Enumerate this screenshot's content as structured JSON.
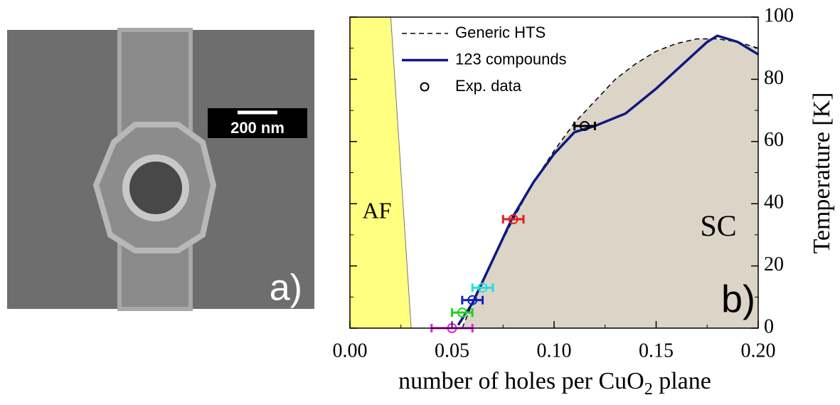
{
  "panel_a": {
    "scale_bar": "200 nm",
    "label": "a)"
  },
  "chart_data": {
    "type": "line",
    "x_label": {
      "pre": "number of holes per CuO",
      "sub": "2",
      "post": " plane"
    },
    "y_label": "Temperature [K]",
    "panel_label": "b)",
    "regions": {
      "af": {
        "label": "AF",
        "color": "#ffff80",
        "x": [
          0.03,
          0.02
        ],
        "y": [
          0,
          100
        ]
      },
      "sc": {
        "label": "SC",
        "color": "#ddd4c8"
      }
    },
    "xlim": [
      0,
      0.2
    ],
    "ylim": [
      0,
      100
    ],
    "xticks": [
      {
        "value": 0,
        "label": "0.00"
      },
      {
        "value": 0.05,
        "label": "0.05"
      },
      {
        "value": 0.1,
        "label": "0.10"
      },
      {
        "value": 0.15,
        "label": "0.15"
      },
      {
        "value": 0.2,
        "label": "0.20"
      }
    ],
    "yticks": [
      0,
      20,
      40,
      60,
      80,
      100
    ],
    "legend": "upper left",
    "series": [
      {
        "name": "Generic HTS",
        "color": "#000000",
        "dash": true,
        "x": [
          0.055,
          0.06,
          0.07,
          0.08,
          0.09,
          0.1,
          0.11,
          0.12,
          0.13,
          0.14,
          0.15,
          0.16,
          0.17,
          0.18,
          0.19,
          0.2
        ],
        "values": [
          0,
          8,
          22,
          35,
          47,
          57,
          66,
          73,
          80,
          85,
          89,
          91.5,
          93,
          93,
          92,
          90
        ]
      },
      {
        "name": "123 compounds",
        "color": "#0d1a80",
        "dash": false,
        "x": [
          0.053,
          0.06,
          0.07,
          0.08,
          0.09,
          0.1,
          0.11,
          0.12,
          0.135,
          0.15,
          0.165,
          0.175,
          0.18,
          0.19,
          0.2
        ],
        "values": [
          1,
          8,
          22,
          36,
          47,
          56,
          63,
          65,
          69,
          77,
          86,
          92,
          94,
          92,
          88
        ]
      },
      {
        "name": "Exp. data",
        "color": "#000000",
        "markers": true,
        "x": [
          0.05,
          0.055,
          0.06,
          0.065,
          0.08,
          0.115
        ],
        "values": [
          0,
          5,
          9,
          13,
          35,
          65
        ],
        "xerr": [
          0.01,
          0.005,
          0.005,
          0.005,
          0.005,
          0.005
        ],
        "colors": [
          "#e020e0",
          "#20d020",
          "#1020c0",
          "#20e0e0",
          "#e02020",
          "#000000"
        ]
      }
    ]
  }
}
